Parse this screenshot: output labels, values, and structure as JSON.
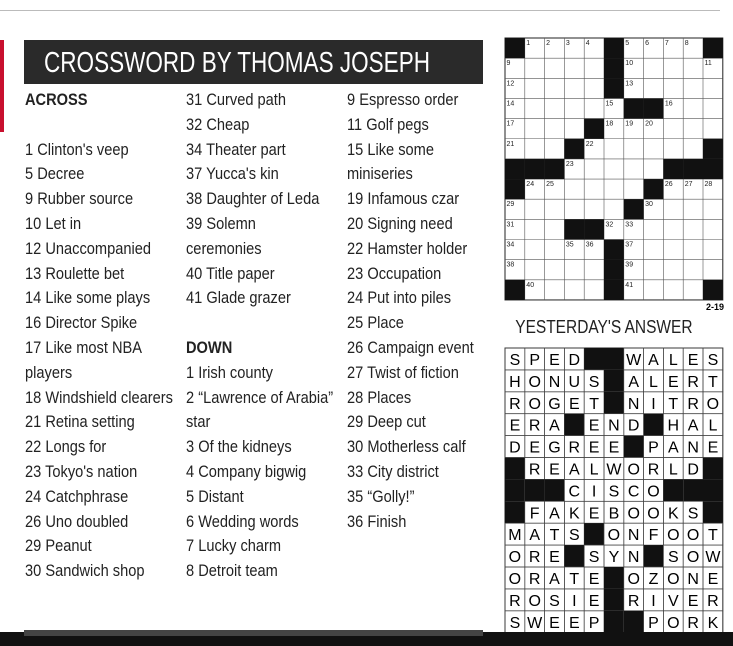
{
  "header": {
    "title": "CROSSWORD BY THOMAS JOSEPH"
  },
  "across": {
    "heading": "ACROSS",
    "clues": [
      {
        "number": 1,
        "text": "Clinton's veep"
      },
      {
        "number": 5,
        "text": "Decree"
      },
      {
        "number": 9,
        "text": "Rubber source"
      },
      {
        "number": 10,
        "text": "Let in"
      },
      {
        "number": 12,
        "text": "Unaccompanied"
      },
      {
        "number": 13,
        "text": "Roulette bet"
      },
      {
        "number": 14,
        "text": "Like some plays"
      },
      {
        "number": 16,
        "text": "Director Spike"
      },
      {
        "number": 17,
        "text": "Like most NBA players"
      },
      {
        "number": 18,
        "text": "Windshield clearers"
      },
      {
        "number": 21,
        "text": "Retina setting"
      },
      {
        "number": 22,
        "text": "Longs for"
      },
      {
        "number": 23,
        "text": "Tokyo's nation"
      },
      {
        "number": 24,
        "text": "Catchphrase"
      },
      {
        "number": 26,
        "text": "Uno doubled"
      },
      {
        "number": 29,
        "text": "Peanut"
      },
      {
        "number": 30,
        "text": "Sandwich shop"
      },
      {
        "number": 31,
        "text": "Curved path"
      },
      {
        "number": 32,
        "text": "Cheap"
      },
      {
        "number": 34,
        "text": "Theater part"
      },
      {
        "number": 37,
        "text": "Yucca's kin"
      },
      {
        "number": 38,
        "text": "Daughter of Leda"
      },
      {
        "number": 39,
        "text": "Solemn ceremonies"
      },
      {
        "number": 40,
        "text": "Title paper"
      },
      {
        "number": 41,
        "text": "Glade grazer"
      }
    ]
  },
  "down": {
    "heading": "DOWN",
    "clues": [
      {
        "number": 1,
        "text": "Irish county"
      },
      {
        "number": 2,
        "text": "“Lawrence of Arabia” star"
      },
      {
        "number": 3,
        "text": "Of the kidneys"
      },
      {
        "number": 4,
        "text": "Company bigwig"
      },
      {
        "number": 5,
        "text": "Distant"
      },
      {
        "number": 6,
        "text": "Wedding words"
      },
      {
        "number": 7,
        "text": "Lucky charm"
      },
      {
        "number": 8,
        "text": "Detroit team"
      },
      {
        "number": 9,
        "text": "Espresso order"
      },
      {
        "number": 11,
        "text": "Golf pegs"
      },
      {
        "number": 15,
        "text": "Like some miniseries"
      },
      {
        "number": 19,
        "text": "Infamous czar"
      },
      {
        "number": 20,
        "text": "Signing need"
      },
      {
        "number": 22,
        "text": "Hamster holder"
      },
      {
        "number": 23,
        "text": "Occupation"
      },
      {
        "number": 24,
        "text": "Put into piles"
      },
      {
        "number": 25,
        "text": "Place"
      },
      {
        "number": 26,
        "text": "Campaign event"
      },
      {
        "number": 27,
        "text": "Twist of fiction"
      },
      {
        "number": 28,
        "text": "Places"
      },
      {
        "number": 29,
        "text": "Deep cut"
      },
      {
        "number": 30,
        "text": "Motherless calf"
      },
      {
        "number": 33,
        "text": "City district"
      },
      {
        "number": 35,
        "text": "“Golly!”"
      },
      {
        "number": 36,
        "text": "Finish"
      }
    ]
  },
  "puzzle": {
    "rows": 13,
    "cols": 11,
    "date_code": "2-19",
    "blocks": [
      [
        0,
        0
      ],
      [
        0,
        5
      ],
      [
        0,
        10
      ],
      [
        1,
        5
      ],
      [
        2,
        5
      ],
      [
        3,
        6
      ],
      [
        3,
        7
      ],
      [
        4,
        4
      ],
      [
        5,
        3
      ],
      [
        5,
        10
      ],
      [
        6,
        0
      ],
      [
        6,
        1
      ],
      [
        6,
        2
      ],
      [
        6,
        8
      ],
      [
        6,
        9
      ],
      [
        6,
        10
      ],
      [
        7,
        0
      ],
      [
        7,
        7
      ],
      [
        8,
        6
      ],
      [
        9,
        3
      ],
      [
        9,
        4
      ],
      [
        10,
        5
      ],
      [
        11,
        5
      ],
      [
        12,
        0
      ],
      [
        12,
        5
      ],
      [
        12,
        10
      ]
    ],
    "numbers": [
      [
        0,
        1,
        1
      ],
      [
        0,
        2,
        2
      ],
      [
        0,
        3,
        3
      ],
      [
        0,
        4,
        4
      ],
      [
        0,
        6,
        5
      ],
      [
        0,
        7,
        6
      ],
      [
        0,
        8,
        7
      ],
      [
        0,
        9,
        8
      ],
      [
        1,
        0,
        9
      ],
      [
        1,
        6,
        10
      ],
      [
        1,
        10,
        11
      ],
      [
        2,
        0,
        12
      ],
      [
        2,
        6,
        13
      ],
      [
        3,
        0,
        14
      ],
      [
        3,
        5,
        15
      ],
      [
        3,
        8,
        16
      ],
      [
        4,
        0,
        17
      ],
      [
        4,
        5,
        18
      ],
      [
        4,
        6,
        19
      ],
      [
        4,
        7,
        20
      ],
      [
        5,
        0,
        21
      ],
      [
        5,
        4,
        22
      ],
      [
        6,
        3,
        23
      ],
      [
        7,
        1,
        24
      ],
      [
        7,
        2,
        25
      ],
      [
        7,
        8,
        26
      ],
      [
        7,
        9,
        27
      ],
      [
        7,
        10,
        28
      ],
      [
        8,
        0,
        29
      ],
      [
        8,
        7,
        30
      ],
      [
        9,
        0,
        31
      ],
      [
        9,
        5,
        32
      ],
      [
        9,
        6,
        33
      ],
      [
        10,
        0,
        34
      ],
      [
        10,
        3,
        35
      ],
      [
        10,
        4,
        36
      ],
      [
        10,
        6,
        37
      ],
      [
        11,
        0,
        38
      ],
      [
        11,
        6,
        39
      ],
      [
        12,
        1,
        40
      ],
      [
        12,
        6,
        41
      ]
    ]
  },
  "answer": {
    "title": "YESTERDAY'S ANSWER",
    "rows": [
      [
        "S",
        "P",
        "E",
        "D",
        null,
        null,
        "W",
        "A",
        "L",
        "E",
        "S"
      ],
      [
        "H",
        "O",
        "N",
        "U",
        "S",
        null,
        "A",
        "L",
        "E",
        "R",
        "T"
      ],
      [
        "R",
        "O",
        "G",
        "E",
        "T",
        null,
        "N",
        "I",
        "T",
        "R",
        "O"
      ],
      [
        "E",
        "R",
        "A",
        null,
        "E",
        "N",
        "D",
        null,
        "H",
        "A",
        "L"
      ],
      [
        "D",
        "E",
        "G",
        "R",
        "E",
        "E",
        null,
        "P",
        "A",
        "N",
        "E"
      ],
      [
        null,
        "R",
        "E",
        "A",
        "L",
        "W",
        "O",
        "R",
        "L",
        "D",
        null
      ],
      [
        null,
        null,
        null,
        "C",
        "I",
        "S",
        "C",
        "O",
        null,
        null,
        null
      ],
      [
        null,
        "F",
        "A",
        "K",
        "E",
        "B",
        "O",
        "O",
        "K",
        "S",
        null
      ],
      [
        "M",
        "A",
        "T",
        "S",
        null,
        "O",
        "N",
        "F",
        "O",
        "O",
        "T"
      ],
      [
        "O",
        "R",
        "E",
        null,
        "S",
        "Y",
        "N",
        null,
        "S",
        "O",
        "W"
      ],
      [
        "O",
        "R",
        "A",
        "T",
        "E",
        null,
        "O",
        "Z",
        "O",
        "N",
        "E"
      ],
      [
        "R",
        "O",
        "S",
        "I",
        "E",
        null,
        "R",
        "I",
        "V",
        "E",
        "R"
      ],
      [
        "S",
        "W",
        "E",
        "E",
        "P",
        null,
        null,
        "P",
        "O",
        "R",
        "K"
      ]
    ]
  }
}
